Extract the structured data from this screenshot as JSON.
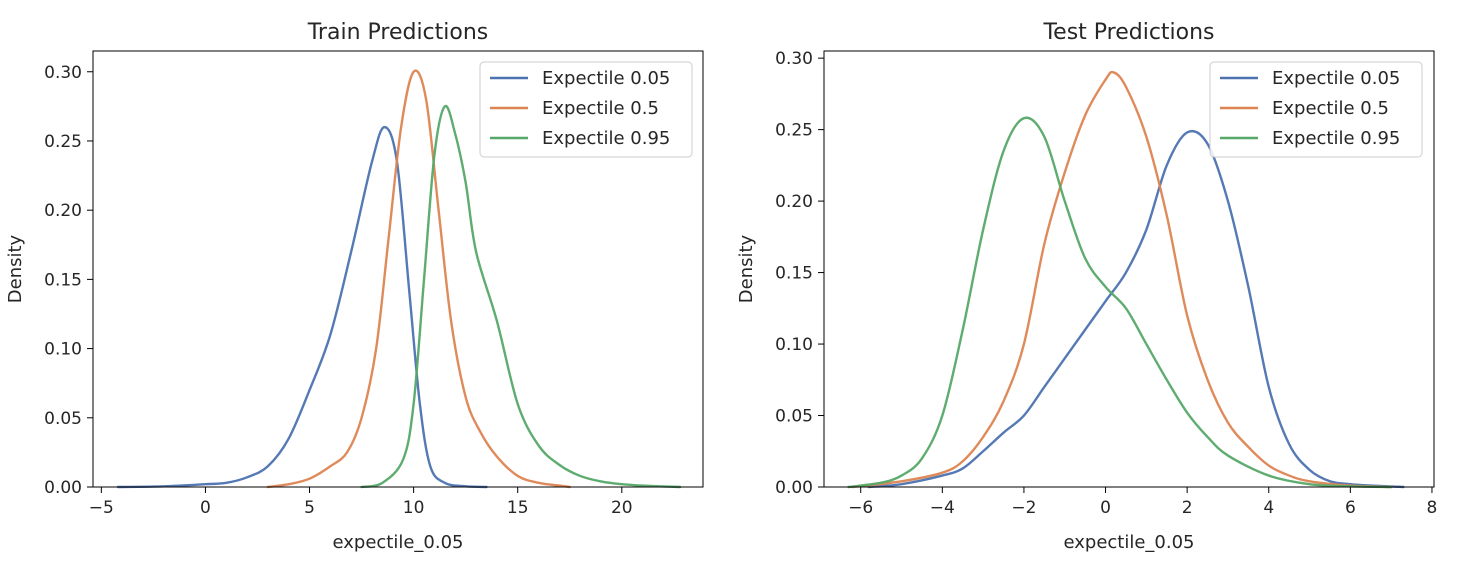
{
  "chart_data": [
    {
      "type": "line",
      "title": "Train Predictions",
      "xlabel": "expectile_0.05",
      "ylabel": "Density",
      "xlim": [
        -5.4,
        23.9
      ],
      "ylim": [
        0,
        0.315
      ],
      "xticks": [
        -5,
        0,
        5,
        10,
        15,
        20
      ],
      "xtick_labels": [
        "−5",
        "0",
        "5",
        "10",
        "15",
        "20"
      ],
      "yticks": [
        0,
        0.05,
        0.1,
        0.15,
        0.2,
        0.25,
        0.3
      ],
      "ytick_labels": [
        "0.00",
        "0.05",
        "0.10",
        "0.15",
        "0.20",
        "0.25",
        "0.30"
      ],
      "legend": "top-right",
      "series": [
        {
          "name": "Expectile 0.05",
          "color": "#4c72b0",
          "x": [
            -4.2,
            -2,
            0,
            1,
            2,
            3,
            4,
            5,
            6,
            7,
            8,
            8.6,
            9.2,
            9.8,
            10.3,
            10.8,
            11.5,
            12.5,
            13.5
          ],
          "y": [
            0,
            0.0005,
            0.002,
            0.003,
            0.007,
            0.015,
            0.035,
            0.07,
            0.11,
            0.17,
            0.235,
            0.26,
            0.235,
            0.14,
            0.06,
            0.015,
            0.003,
            0.0005,
            0
          ]
        },
        {
          "name": "Expectile 0.5",
          "color": "#dd8452",
          "x": [
            3,
            4,
            5,
            6,
            6.8,
            7.5,
            8.2,
            8.8,
            9.4,
            10,
            10.6,
            11.2,
            11.8,
            12.5,
            13.2,
            14,
            15,
            16,
            17,
            17.5
          ],
          "y": [
            0,
            0.002,
            0.006,
            0.015,
            0.025,
            0.05,
            0.1,
            0.18,
            0.26,
            0.3,
            0.28,
            0.2,
            0.12,
            0.065,
            0.04,
            0.022,
            0.008,
            0.003,
            0.001,
            0
          ]
        },
        {
          "name": "Expectile 0.95",
          "color": "#55a868",
          "x": [
            7.5,
            8.5,
            9.5,
            10,
            10.5,
            11,
            11.5,
            12,
            12.5,
            13,
            14,
            15,
            16,
            17,
            18,
            19,
            20,
            21,
            22.8
          ],
          "y": [
            0,
            0.003,
            0.02,
            0.06,
            0.15,
            0.24,
            0.275,
            0.255,
            0.22,
            0.17,
            0.12,
            0.06,
            0.03,
            0.016,
            0.008,
            0.004,
            0.002,
            0.001,
            0
          ]
        }
      ]
    },
    {
      "type": "line",
      "title": "Test Predictions",
      "xlabel": "expectile_0.05",
      "ylabel": "Density",
      "xlim": [
        -6.9,
        8.05
      ],
      "ylim": [
        0,
        0.305
      ],
      "xticks": [
        -6,
        -4,
        -2,
        0,
        2,
        4,
        6,
        8
      ],
      "xtick_labels": [
        "−6",
        "−4",
        "−2",
        "0",
        "2",
        "4",
        "6",
        "8"
      ],
      "yticks": [
        0,
        0.05,
        0.1,
        0.15,
        0.2,
        0.25,
        0.3
      ],
      "ytick_labels": [
        "0.00",
        "0.05",
        "0.10",
        "0.15",
        "0.20",
        "0.25",
        "0.30"
      ],
      "legend": "top-right",
      "series": [
        {
          "name": "Expectile 0.05",
          "color": "#4c72b0",
          "x": [
            -5.8,
            -5,
            -4,
            -3.5,
            -3,
            -2.5,
            -2,
            -1.5,
            -1,
            -0.5,
            0,
            0.5,
            1,
            1.5,
            2,
            2.5,
            3,
            3.5,
            4,
            4.5,
            5,
            5.5,
            6,
            6.5,
            7.3
          ],
          "y": [
            0,
            0.002,
            0.008,
            0.013,
            0.025,
            0.038,
            0.05,
            0.07,
            0.09,
            0.11,
            0.13,
            0.15,
            0.18,
            0.225,
            0.248,
            0.24,
            0.2,
            0.14,
            0.07,
            0.03,
            0.012,
            0.004,
            0.002,
            0.001,
            0
          ]
        },
        {
          "name": "Expectile 0.5",
          "color": "#dd8452",
          "x": [
            -6.2,
            -5,
            -4,
            -3.5,
            -3,
            -2.5,
            -2,
            -1.5,
            -1,
            -0.5,
            0,
            0.2,
            0.5,
            1,
            1.5,
            2,
            2.5,
            3,
            3.5,
            4,
            4.5,
            5,
            6,
            7
          ],
          "y": [
            0,
            0.004,
            0.01,
            0.018,
            0.035,
            0.06,
            0.1,
            0.17,
            0.22,
            0.26,
            0.285,
            0.29,
            0.28,
            0.245,
            0.19,
            0.12,
            0.075,
            0.045,
            0.028,
            0.015,
            0.008,
            0.004,
            0.001,
            0
          ]
        },
        {
          "name": "Expectile 0.95",
          "color": "#55a868",
          "x": [
            -6.3,
            -5.5,
            -5,
            -4.5,
            -4,
            -3.5,
            -3,
            -2.5,
            -2,
            -1.5,
            -1,
            -0.5,
            0,
            0.5,
            1,
            1.5,
            2,
            2.5,
            3,
            4,
            5,
            6,
            7
          ],
          "y": [
            0,
            0.003,
            0.008,
            0.02,
            0.05,
            0.11,
            0.18,
            0.235,
            0.258,
            0.245,
            0.2,
            0.16,
            0.14,
            0.125,
            0.1,
            0.075,
            0.052,
            0.035,
            0.022,
            0.008,
            0.002,
            0.0005,
            0
          ]
        }
      ]
    }
  ]
}
